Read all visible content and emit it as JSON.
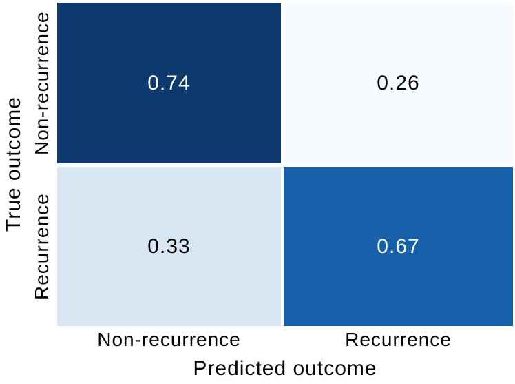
{
  "chart_data": {
    "type": "heatmap",
    "subtype": "confusion-matrix",
    "title": "",
    "xlabel": "Predicted outcome",
    "ylabel": "True outcome",
    "x_categories": [
      "Non-recurrence",
      "Recurrence"
    ],
    "y_categories": [
      "Non-recurrence",
      "Recurrence"
    ],
    "values": [
      [
        0.74,
        0.26
      ],
      [
        0.33,
        0.67
      ]
    ],
    "grid": false,
    "legend_position": "none",
    "background_color": "#ffffff",
    "label_text_color": "#000000",
    "cells": [
      {
        "row": "Non-recurrence",
        "col": "Non-recurrence",
        "label": "0.74",
        "bg": "#0d3a6e",
        "fg": "#ffffff"
      },
      {
        "row": "Non-recurrence",
        "col": "Recurrence",
        "label": "0.26",
        "bg": "#f7fafe",
        "fg": "#000000"
      },
      {
        "row": "Recurrence",
        "col": "Non-recurrence",
        "label": "0.33",
        "bg": "#d8e5f3",
        "fg": "#000000"
      },
      {
        "row": "Recurrence",
        "col": "Recurrence",
        "label": "0.67",
        "bg": "#1560a8",
        "fg": "#ffffff"
      }
    ]
  }
}
